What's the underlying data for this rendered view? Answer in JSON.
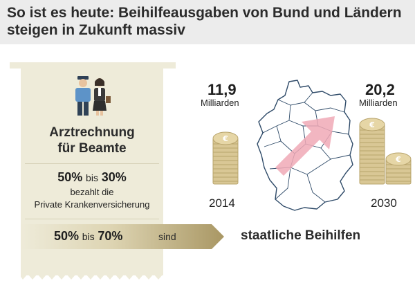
{
  "header": {
    "title": "So ist es heute: Beihilfeausgaben von Bund und Ländern steigen in Zukunft massiv"
  },
  "receipt": {
    "title_line1": "Arztrechnung",
    "title_line2": "für Beamte",
    "private": {
      "pct_from": "50%",
      "word_bis": "bis",
      "pct_to": "30%",
      "line1": "bezahlt die",
      "line2": "Private Krankenversicherung"
    },
    "state": {
      "pct_from": "50%",
      "word_bis": "bis",
      "pct_to": "70%",
      "word_sind": "sind"
    }
  },
  "state_label": "staatliche Beihilfen",
  "left_stat": {
    "value": "11,9",
    "unit": "Milliarden",
    "year": "2014"
  },
  "right_stat": {
    "value": "20,2",
    "unit": "Milliarden",
    "year": "2030"
  },
  "colors": {
    "header_bg": "#ececec",
    "receipt_bg": "#eeebd9",
    "coin_gold": "#c8b27a",
    "arrow_band": "#b9a97a",
    "map_arrow": "#f0a9b6"
  },
  "icons": [
    "people-icon",
    "coin-stack-icon",
    "germany-map-icon",
    "up-arrow-icon"
  ]
}
